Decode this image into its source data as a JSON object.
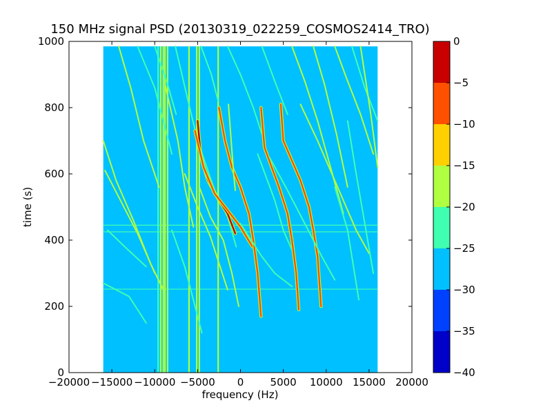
{
  "chart_data": {
    "type": "heatmap",
    "title": "150 MHz signal PSD (20130319_022259_COSMOS2414_TRO)",
    "xlabel": "frequency (Hz)",
    "ylabel": "time (s)",
    "xlim": [
      -20000,
      20000
    ],
    "ylim": [
      0,
      1000
    ],
    "x_ticks": [
      -20000,
      -15000,
      -10000,
      -5000,
      0,
      5000,
      10000,
      15000,
      20000
    ],
    "x_tick_labels": [
      "−20000",
      "−15000",
      "−10000",
      "−5000",
      "0",
      "5000",
      "10000",
      "15000",
      "20000"
    ],
    "y_ticks": [
      0,
      200,
      400,
      600,
      800,
      1000
    ],
    "y_tick_labels": [
      "0",
      "200",
      "400",
      "600",
      "800",
      "1000"
    ],
    "data_extent": {
      "x": [
        -16000,
        16000
      ],
      "y": [
        0,
        985
      ]
    },
    "background_level": -27.5,
    "colorbar": {
      "range": [
        -40,
        0
      ],
      "ticks": [
        0,
        -5,
        -10,
        -15,
        -20,
        -25,
        -30,
        -35,
        -40
      ],
      "tick_labels": [
        "0",
        "−5",
        "−10",
        "−15",
        "−20",
        "−25",
        "−30",
        "−35",
        "−40"
      ],
      "bands": [
        {
          "from": -40,
          "to": -35,
          "color": "#0000c8"
        },
        {
          "from": -35,
          "to": -30,
          "color": "#0040ff"
        },
        {
          "from": -30,
          "to": -25,
          "color": "#00c0ff"
        },
        {
          "from": -25,
          "to": -20,
          "color": "#40ffb0"
        },
        {
          "from": -20,
          "to": -15,
          "color": "#b0ff40"
        },
        {
          "from": -15,
          "to": -10,
          "color": "#ffd000"
        },
        {
          "from": -10,
          "to": -5,
          "color": "#ff5000"
        },
        {
          "from": -5,
          "to": 0,
          "color": "#c80000"
        }
      ]
    },
    "vertical_lines": [
      {
        "x": -9600,
        "level": -22
      },
      {
        "x": -9300,
        "level": -18
      },
      {
        "x": -9000,
        "level": -17
      },
      {
        "x": -8800,
        "level": -18
      },
      {
        "x": -8500,
        "level": -17
      },
      {
        "x": -6000,
        "level": -18
      },
      {
        "x": -5100,
        "level": -18
      },
      {
        "x": -4800,
        "level": -18
      },
      {
        "x": -2600,
        "level": -18
      }
    ],
    "horizontal_lines": [
      {
        "y": 252,
        "level": -22
      },
      {
        "y": 425,
        "level": -23
      },
      {
        "y": 445,
        "level": -24
      }
    ],
    "traces": [
      {
        "points": [
          [
            -14200,
            985
          ],
          [
            -12800,
            860
          ],
          [
            -11300,
            700
          ],
          [
            -9500,
            560
          ]
        ],
        "level": -18
      },
      {
        "points": [
          [
            -15800,
            610
          ],
          [
            -14000,
            520
          ],
          [
            -12000,
            420
          ],
          [
            -10000,
            300
          ]
        ],
        "level": -18
      },
      {
        "points": [
          [
            -16000,
            700
          ],
          [
            -14500,
            580
          ],
          [
            -12500,
            460
          ],
          [
            -10500,
            330
          ],
          [
            -9000,
            250
          ]
        ],
        "level": -20
      },
      {
        "points": [
          [
            -15500,
            430
          ],
          [
            -13500,
            380
          ],
          [
            -11000,
            320
          ]
        ],
        "level": -23
      },
      {
        "points": [
          [
            -16000,
            270
          ],
          [
            -13000,
            230
          ],
          [
            -11000,
            150
          ]
        ],
        "level": -24
      },
      {
        "points": [
          [
            -12000,
            985
          ],
          [
            -10000,
            860
          ],
          [
            -9000,
            760
          ],
          [
            -8000,
            660
          ]
        ],
        "level": -21
      },
      {
        "points": [
          [
            -10000,
            985
          ],
          [
            -8500,
            870
          ],
          [
            -7500,
            780
          ]
        ],
        "level": -22
      },
      {
        "points": [
          [
            -8800,
            870
          ],
          [
            -7300,
            700
          ],
          [
            -6500,
            560
          ],
          [
            -5500,
            440
          ]
        ],
        "level": -19
      },
      {
        "points": [
          [
            -7600,
            985
          ],
          [
            -6200,
            830
          ],
          [
            -5000,
            700
          ],
          [
            -3000,
            550
          ],
          [
            -1500,
            470
          ],
          [
            -500,
            380
          ]
        ],
        "level": -21
      },
      {
        "points": [
          [
            -5000,
            760
          ],
          [
            -4600,
            650
          ],
          [
            -3800,
            580
          ],
          [
            -2500,
            520
          ],
          [
            -1500,
            480
          ],
          [
            -600,
            420
          ]
        ],
        "level": -5
      },
      {
        "points": [
          [
            -5300,
            730
          ],
          [
            -4300,
            620
          ],
          [
            -3000,
            540
          ],
          [
            -1500,
            490
          ],
          [
            0,
            440
          ],
          [
            1400,
            380
          ]
        ],
        "level": -7
      },
      {
        "points": [
          [
            -4800,
            560
          ],
          [
            -3500,
            470
          ],
          [
            -2000,
            400
          ],
          [
            -1000,
            300
          ],
          [
            -200,
            200
          ]
        ],
        "level": -16
      },
      {
        "points": [
          [
            -6500,
            600
          ],
          [
            -5000,
            500
          ],
          [
            -3500,
            410
          ],
          [
            -2500,
            330
          ],
          [
            -1500,
            250
          ]
        ],
        "level": -20
      },
      {
        "points": [
          [
            -4600,
            985
          ],
          [
            -3400,
            900
          ],
          [
            -2600,
            820
          ]
        ],
        "level": -21
      },
      {
        "points": [
          [
            -2500,
            800
          ],
          [
            -1800,
            700
          ],
          [
            -1000,
            620
          ],
          [
            0,
            560
          ],
          [
            1000,
            480
          ],
          [
            1500,
            400
          ],
          [
            2000,
            300
          ],
          [
            2400,
            170
          ]
        ],
        "level": -9
      },
      {
        "points": [
          [
            -1400,
            810
          ],
          [
            -800,
            600
          ],
          [
            -600,
            550
          ]
        ],
        "level": -20
      },
      {
        "points": [
          [
            -1500,
            985
          ],
          [
            0,
            900
          ],
          [
            1500,
            800
          ],
          [
            2500,
            720
          ]
        ],
        "level": -22
      },
      {
        "points": [
          [
            2400,
            800
          ],
          [
            2800,
            680
          ],
          [
            3500,
            630
          ],
          [
            4500,
            560
          ],
          [
            5500,
            480
          ],
          [
            6000,
            400
          ],
          [
            6500,
            300
          ],
          [
            6800,
            190
          ]
        ],
        "level": -8
      },
      {
        "points": [
          [
            4700,
            810
          ],
          [
            5000,
            700
          ],
          [
            6000,
            640
          ],
          [
            7000,
            580
          ],
          [
            8000,
            500
          ],
          [
            8500,
            430
          ],
          [
            9000,
            350
          ],
          [
            9400,
            200
          ]
        ],
        "level": -8
      },
      {
        "points": [
          [
            2500,
            985
          ],
          [
            4000,
            880
          ],
          [
            5500,
            780
          ]
        ],
        "level": -21
      },
      {
        "points": [
          [
            6000,
            985
          ],
          [
            7500,
            880
          ],
          [
            9000,
            760
          ],
          [
            10500,
            620
          ],
          [
            12000,
            480
          ]
        ],
        "level": -19
      },
      {
        "points": [
          [
            8500,
            985
          ],
          [
            9800,
            870
          ],
          [
            11200,
            720
          ],
          [
            12500,
            560
          ]
        ],
        "level": -20
      },
      {
        "points": [
          [
            3400,
            650
          ],
          [
            5500,
            550
          ],
          [
            7500,
            450
          ],
          [
            9500,
            350
          ],
          [
            11000,
            280
          ]
        ],
        "level": -22
      },
      {
        "points": [
          [
            7000,
            810
          ],
          [
            9000,
            700
          ],
          [
            11000,
            580
          ],
          [
            13500,
            430
          ],
          [
            15000,
            360
          ]
        ],
        "level": -19
      },
      {
        "points": [
          [
            11000,
            985
          ],
          [
            12500,
            880
          ],
          [
            14000,
            780
          ],
          [
            15500,
            660
          ]
        ],
        "level": -20
      },
      {
        "points": [
          [
            13000,
            985
          ],
          [
            14500,
            860
          ],
          [
            16000,
            760
          ]
        ],
        "level": -21
      },
      {
        "points": [
          [
            12500,
            760
          ],
          [
            13500,
            600
          ],
          [
            14500,
            450
          ],
          [
            15500,
            300
          ]
        ],
        "level": -21
      },
      {
        "points": [
          [
            11000,
            560
          ],
          [
            12500,
            430
          ],
          [
            13800,
            220
          ]
        ],
        "level": -21
      },
      {
        "points": [
          [
            14000,
            985
          ],
          [
            15200,
            780
          ],
          [
            16000,
            620
          ]
        ],
        "level": -18
      },
      {
        "points": [
          [
            -8000,
            430
          ],
          [
            -6500,
            320
          ],
          [
            -5500,
            220
          ],
          [
            -4500,
            120
          ]
        ],
        "level": -24
      },
      {
        "points": [
          [
            0,
            450
          ],
          [
            2500,
            350
          ],
          [
            4000,
            300
          ],
          [
            6000,
            260
          ]
        ],
        "level": -22
      },
      {
        "points": [
          [
            2000,
            660
          ],
          [
            4000,
            520
          ],
          [
            5000,
            430
          ],
          [
            6000,
            370
          ]
        ],
        "level": -22
      }
    ]
  }
}
